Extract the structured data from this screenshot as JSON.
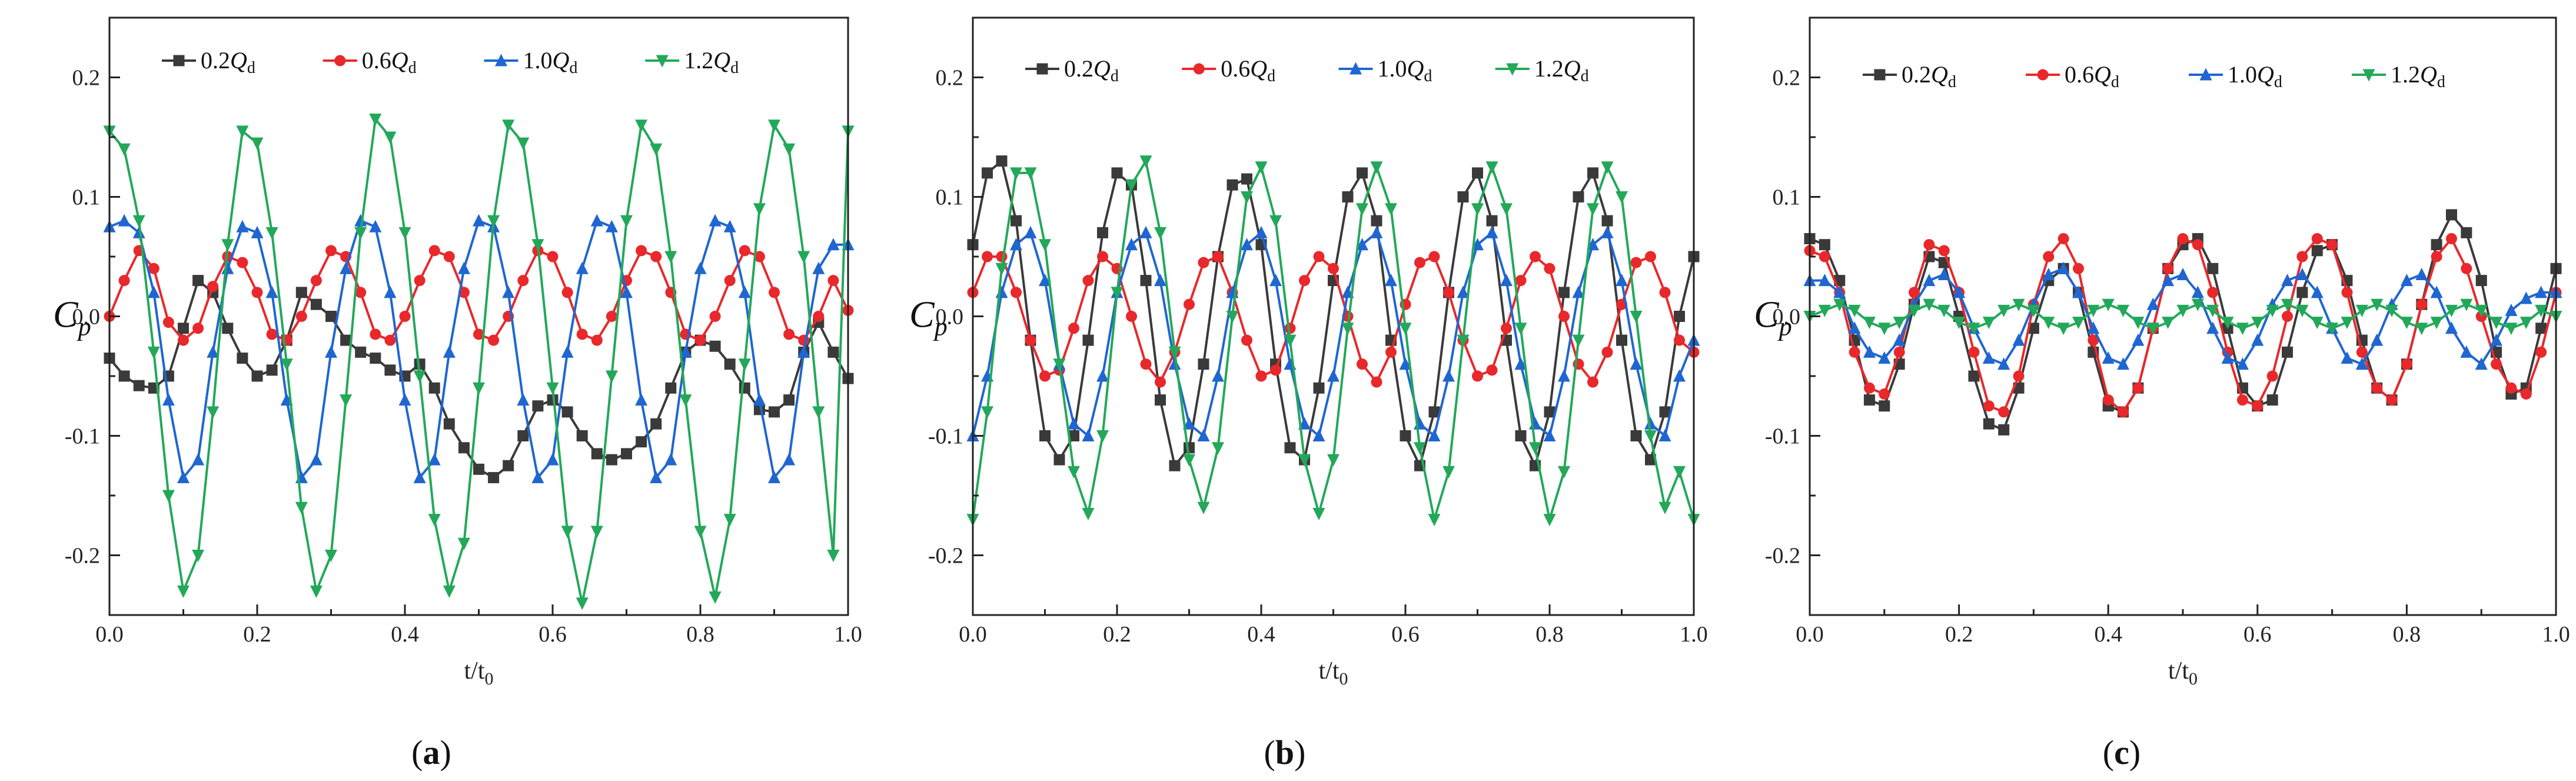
{
  "figure": {
    "panel_labels": [
      "(a)",
      "(b)",
      "(c)"
    ]
  },
  "colors": {
    "s0": "#3a3a3a",
    "s1": "#e8282b",
    "s2": "#1f66d1",
    "s3": "#23a85a"
  },
  "chart_data": [
    {
      "type": "line",
      "panel": "(a)",
      "xlabel": "t/t0",
      "ylabel": "Cp",
      "xlim": [
        0,
        1.0
      ],
      "ylim": [
        -0.25,
        0.25
      ],
      "xticks": [
        "0.0",
        "0.2",
        "0.4",
        "0.6",
        "0.8",
        "1.0"
      ],
      "yticks": [
        "-0.2",
        "-0.1",
        "0.0",
        "0.1",
        "0.2"
      ],
      "legend": [
        "0.2Qd",
        "0.6Qd",
        "1.0Qd",
        "1.2Qd"
      ],
      "x": [
        0,
        0.02,
        0.04,
        0.06,
        0.08,
        0.1,
        0.12,
        0.14,
        0.16,
        0.18,
        0.2,
        0.22,
        0.24,
        0.26,
        0.28,
        0.3,
        0.32,
        0.34,
        0.36,
        0.38,
        0.4,
        0.42,
        0.44,
        0.46,
        0.48,
        0.5,
        0.52,
        0.54,
        0.56,
        0.58,
        0.6,
        0.62,
        0.64,
        0.66,
        0.68,
        0.7,
        0.72,
        0.74,
        0.76,
        0.78,
        0.8,
        0.82,
        0.84,
        0.86,
        0.88,
        0.9,
        0.92,
        0.94,
        0.96,
        0.98,
        1.0
      ],
      "series": [
        {
          "name": "0.2Qd",
          "values": [
            -0.035,
            -0.05,
            -0.058,
            -0.06,
            -0.05,
            -0.01,
            0.03,
            0.02,
            -0.01,
            -0.035,
            -0.05,
            -0.045,
            -0.02,
            0.02,
            0.01,
            0.0,
            -0.02,
            -0.03,
            -0.035,
            -0.045,
            -0.05,
            -0.04,
            -0.06,
            -0.09,
            -0.11,
            -0.128,
            -0.135,
            -0.125,
            -0.1,
            -0.075,
            -0.07,
            -0.08,
            -0.1,
            -0.115,
            -0.12,
            -0.115,
            -0.105,
            -0.09,
            -0.06,
            -0.03,
            -0.02,
            -0.025,
            -0.04,
            -0.06,
            -0.078,
            -0.08,
            -0.07,
            -0.03,
            -0.005,
            -0.03,
            -0.052
          ]
        },
        {
          "name": "0.6Qd",
          "values": [
            0.0,
            0.03,
            0.055,
            0.04,
            -0.005,
            -0.02,
            -0.01,
            0.025,
            0.05,
            0.045,
            0.02,
            -0.015,
            -0.02,
            0.0,
            0.03,
            0.055,
            0.05,
            0.02,
            -0.015,
            -0.02,
            0.0,
            0.03,
            0.055,
            0.05,
            0.02,
            -0.015,
            -0.02,
            0.0,
            0.03,
            0.055,
            0.05,
            0.02,
            -0.015,
            -0.02,
            0.0,
            0.03,
            0.055,
            0.05,
            0.02,
            -0.015,
            -0.02,
            0.0,
            0.03,
            0.055,
            0.05,
            0.02,
            -0.015,
            -0.02,
            0.0,
            0.03,
            0.005
          ]
        },
        {
          "name": "1.0Qd",
          "values": [
            0.075,
            0.08,
            0.07,
            0.02,
            -0.07,
            -0.135,
            -0.12,
            -0.03,
            0.04,
            0.075,
            0.07,
            0.02,
            -0.07,
            -0.135,
            -0.12,
            -0.03,
            0.04,
            0.08,
            0.075,
            0.02,
            -0.07,
            -0.135,
            -0.12,
            -0.03,
            0.04,
            0.08,
            0.075,
            0.02,
            -0.07,
            -0.135,
            -0.12,
            -0.03,
            0.04,
            0.08,
            0.075,
            0.02,
            -0.07,
            -0.135,
            -0.12,
            -0.03,
            0.04,
            0.08,
            0.075,
            0.02,
            -0.07,
            -0.135,
            -0.12,
            -0.03,
            0.04,
            0.06,
            0.06
          ]
        },
        {
          "name": "1.2Qd",
          "values": [
            0.155,
            0.14,
            0.08,
            -0.03,
            -0.15,
            -0.23,
            -0.2,
            -0.08,
            0.06,
            0.155,
            0.145,
            0.07,
            -0.04,
            -0.16,
            -0.23,
            -0.2,
            -0.07,
            0.07,
            0.165,
            0.15,
            0.07,
            -0.05,
            -0.17,
            -0.23,
            -0.19,
            -0.06,
            0.08,
            0.16,
            0.145,
            0.06,
            -0.06,
            -0.18,
            -0.24,
            -0.18,
            -0.05,
            0.08,
            0.16,
            0.14,
            0.05,
            -0.07,
            -0.18,
            -0.235,
            -0.17,
            -0.04,
            0.09,
            0.16,
            0.14,
            0.05,
            -0.08,
            -0.2,
            0.155
          ]
        }
      ]
    },
    {
      "type": "line",
      "panel": "(b)",
      "xlabel": "t/t0",
      "ylabel": "Cp",
      "xlim": [
        0,
        1.0
      ],
      "ylim": [
        -0.25,
        0.25
      ],
      "xticks": [
        "0.0",
        "0.2",
        "0.4",
        "0.6",
        "0.8",
        "1.0"
      ],
      "yticks": [
        "-0.2",
        "-0.1",
        "0.0",
        "0.1",
        "0.2"
      ],
      "legend": [
        "0.2Qd",
        "0.6Qd",
        "1.0Qd",
        "1.2Qd"
      ],
      "x": [
        0,
        0.02,
        0.04,
        0.06,
        0.08,
        0.1,
        0.12,
        0.14,
        0.16,
        0.18,
        0.2,
        0.22,
        0.24,
        0.26,
        0.28,
        0.3,
        0.32,
        0.34,
        0.36,
        0.38,
        0.4,
        0.42,
        0.44,
        0.46,
        0.48,
        0.5,
        0.52,
        0.54,
        0.56,
        0.58,
        0.6,
        0.62,
        0.64,
        0.66,
        0.68,
        0.7,
        0.72,
        0.74,
        0.76,
        0.78,
        0.8,
        0.82,
        0.84,
        0.86,
        0.88,
        0.9,
        0.92,
        0.94,
        0.96,
        0.98,
        1.0
      ],
      "series": [
        {
          "name": "0.2Qd",
          "values": [
            0.06,
            0.12,
            0.13,
            0.08,
            -0.02,
            -0.1,
            -0.12,
            -0.1,
            -0.02,
            0.07,
            0.12,
            0.11,
            0.03,
            -0.07,
            -0.125,
            -0.11,
            -0.04,
            0.05,
            0.11,
            0.115,
            0.06,
            -0.04,
            -0.11,
            -0.12,
            -0.06,
            0.03,
            0.1,
            0.12,
            0.08,
            -0.02,
            -0.1,
            -0.125,
            -0.08,
            0.02,
            0.1,
            0.12,
            0.08,
            -0.02,
            -0.1,
            -0.125,
            -0.08,
            0.02,
            0.1,
            0.12,
            0.08,
            -0.02,
            -0.1,
            -0.12,
            -0.08,
            0.0,
            0.05
          ]
        },
        {
          "name": "0.6Qd",
          "values": [
            0.02,
            0.05,
            0.05,
            0.02,
            -0.02,
            -0.05,
            -0.045,
            -0.01,
            0.03,
            0.05,
            0.04,
            0.0,
            -0.04,
            -0.055,
            -0.03,
            0.01,
            0.045,
            0.05,
            0.02,
            -0.02,
            -0.05,
            -0.045,
            -0.01,
            0.03,
            0.05,
            0.04,
            0.0,
            -0.04,
            -0.055,
            -0.03,
            0.01,
            0.045,
            0.05,
            0.02,
            -0.02,
            -0.05,
            -0.045,
            -0.01,
            0.03,
            0.05,
            0.04,
            0.0,
            -0.04,
            -0.055,
            -0.03,
            0.01,
            0.045,
            0.05,
            0.02,
            -0.02,
            -0.03
          ]
        },
        {
          "name": "1.0Qd",
          "values": [
            -0.1,
            -0.05,
            0.02,
            0.06,
            0.07,
            0.03,
            -0.04,
            -0.09,
            -0.1,
            -0.05,
            0.02,
            0.06,
            0.07,
            0.03,
            -0.04,
            -0.09,
            -0.1,
            -0.05,
            0.02,
            0.06,
            0.07,
            0.03,
            -0.04,
            -0.09,
            -0.1,
            -0.05,
            0.02,
            0.06,
            0.07,
            0.03,
            -0.04,
            -0.09,
            -0.1,
            -0.05,
            0.02,
            0.06,
            0.07,
            0.03,
            -0.04,
            -0.09,
            -0.1,
            -0.05,
            0.02,
            0.06,
            0.07,
            0.03,
            -0.04,
            -0.09,
            -0.1,
            -0.05,
            -0.02
          ]
        },
        {
          "name": "1.2Qd",
          "values": [
            -0.17,
            -0.08,
            0.04,
            0.12,
            0.12,
            0.06,
            -0.04,
            -0.13,
            -0.165,
            -0.1,
            0.02,
            0.11,
            0.13,
            0.07,
            -0.03,
            -0.12,
            -0.16,
            -0.11,
            0.0,
            0.1,
            0.125,
            0.08,
            -0.02,
            -0.12,
            -0.165,
            -0.12,
            -0.01,
            0.09,
            0.125,
            0.09,
            -0.01,
            -0.11,
            -0.17,
            -0.13,
            -0.02,
            0.09,
            0.125,
            0.09,
            -0.01,
            -0.11,
            -0.17,
            -0.13,
            -0.02,
            0.09,
            0.125,
            0.1,
            0.0,
            -0.1,
            -0.16,
            -0.13,
            -0.17
          ]
        }
      ]
    },
    {
      "type": "line",
      "panel": "(c)",
      "xlabel": "t/t0",
      "ylabel": "Cp",
      "xlim": [
        0,
        1.0
      ],
      "ylim": [
        -0.25,
        0.25
      ],
      "xticks": [
        "0.0",
        "0.2",
        "0.4",
        "0.6",
        "0.8",
        "1.0"
      ],
      "yticks": [
        "-0.2",
        "-0.1",
        "0.0",
        "0.1",
        "0.2"
      ],
      "legend": [
        "0.2Qd",
        "0.6Qd",
        "1.0Qd",
        "1.2Qd"
      ],
      "x": [
        0,
        0.02,
        0.04,
        0.06,
        0.08,
        0.1,
        0.12,
        0.14,
        0.16,
        0.18,
        0.2,
        0.22,
        0.24,
        0.26,
        0.28,
        0.3,
        0.32,
        0.34,
        0.36,
        0.38,
        0.4,
        0.42,
        0.44,
        0.46,
        0.48,
        0.5,
        0.52,
        0.54,
        0.56,
        0.58,
        0.6,
        0.62,
        0.64,
        0.66,
        0.68,
        0.7,
        0.72,
        0.74,
        0.76,
        0.78,
        0.8,
        0.82,
        0.84,
        0.86,
        0.88,
        0.9,
        0.92,
        0.94,
        0.96,
        0.98,
        1.0
      ],
      "series": [
        {
          "name": "0.2Qd",
          "values": [
            0.065,
            0.06,
            0.03,
            -0.02,
            -0.07,
            -0.075,
            -0.04,
            0.01,
            0.05,
            0.045,
            0.0,
            -0.05,
            -0.09,
            -0.095,
            -0.06,
            -0.01,
            0.03,
            0.04,
            0.02,
            -0.03,
            -0.075,
            -0.08,
            -0.06,
            -0.01,
            0.04,
            0.06,
            0.065,
            0.04,
            -0.01,
            -0.06,
            -0.075,
            -0.07,
            -0.03,
            0.02,
            0.055,
            0.06,
            0.03,
            -0.02,
            -0.06,
            -0.07,
            -0.04,
            0.01,
            0.06,
            0.085,
            0.07,
            0.03,
            -0.03,
            -0.065,
            -0.06,
            -0.01,
            0.04
          ]
        },
        {
          "name": "0.6Qd",
          "values": [
            0.055,
            0.05,
            0.02,
            -0.03,
            -0.06,
            -0.065,
            -0.03,
            0.02,
            0.06,
            0.055,
            0.02,
            -0.03,
            -0.075,
            -0.08,
            -0.05,
            0.01,
            0.05,
            0.065,
            0.04,
            -0.02,
            -0.07,
            -0.08,
            -0.06,
            -0.01,
            0.04,
            0.065,
            0.06,
            0.02,
            -0.03,
            -0.07,
            -0.075,
            -0.05,
            0.0,
            0.05,
            0.065,
            0.06,
            0.02,
            -0.03,
            -0.06,
            -0.07,
            -0.04,
            0.01,
            0.05,
            0.065,
            0.04,
            0.0,
            -0.04,
            -0.06,
            -0.065,
            -0.03,
            0.02
          ]
        },
        {
          "name": "1.0Qd",
          "values": [
            0.03,
            0.03,
            0.02,
            -0.01,
            -0.03,
            -0.035,
            -0.02,
            0.01,
            0.03,
            0.035,
            0.02,
            -0.01,
            -0.035,
            -0.04,
            -0.02,
            0.01,
            0.035,
            0.04,
            0.02,
            -0.01,
            -0.035,
            -0.04,
            -0.02,
            0.01,
            0.03,
            0.035,
            0.02,
            -0.01,
            -0.035,
            -0.04,
            -0.02,
            0.01,
            0.03,
            0.035,
            0.02,
            -0.01,
            -0.035,
            -0.04,
            -0.02,
            0.01,
            0.03,
            0.035,
            0.02,
            -0.01,
            -0.03,
            -0.04,
            -0.02,
            0.005,
            0.015,
            0.02,
            0.02
          ]
        },
        {
          "name": "1.2Qd",
          "values": [
            0.0,
            0.005,
            0.01,
            0.005,
            -0.005,
            -0.01,
            -0.005,
            0.005,
            0.01,
            0.005,
            -0.005,
            -0.01,
            -0.005,
            0.005,
            0.01,
            0.005,
            -0.005,
            -0.01,
            -0.005,
            0.005,
            0.01,
            0.005,
            -0.005,
            -0.01,
            -0.005,
            0.005,
            0.01,
            0.005,
            -0.005,
            -0.01,
            -0.005,
            0.005,
            0.01,
            0.005,
            -0.005,
            -0.01,
            -0.005,
            0.005,
            0.01,
            0.005,
            -0.005,
            -0.01,
            -0.005,
            0.005,
            0.01,
            0.005,
            -0.005,
            -0.01,
            -0.005,
            0.005,
            0.0
          ]
        }
      ]
    }
  ]
}
